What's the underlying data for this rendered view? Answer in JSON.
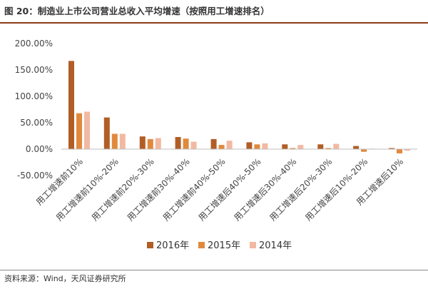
{
  "header": {
    "title": "图 20：制造业上市公司营业总收入平均增速（按照用工增速排名）"
  },
  "footer": {
    "source": "资料来源：Wind，天风证券研究所"
  },
  "chart_data": {
    "type": "bar",
    "title": "",
    "xlabel": "",
    "ylabel": "",
    "ylim": [
      -0.5,
      2.0
    ],
    "yticks": [
      -0.5,
      0.0,
      0.5,
      1.0,
      1.5,
      2.0
    ],
    "ytick_labels": [
      "-50.00%",
      "0.00%",
      "50.00%",
      "100.00%",
      "150.00%",
      "200.00%"
    ],
    "grid": false,
    "legend_position": "bottom",
    "categories": [
      "用工增速前10%",
      "用工增速前10%-20%",
      "用工增速前20%-30%",
      "用工增速前30%-40%",
      "用工增速前40%-50%",
      "用工增速后40%-50%",
      "用工增速后30%-40%",
      "用工增速后20%-30%",
      "用工增速后10%-20%",
      "用工增速后10%"
    ],
    "series": [
      {
        "name": "2016年",
        "color": "#b15e26",
        "values": [
          1.67,
          0.6,
          0.24,
          0.23,
          0.19,
          0.13,
          0.09,
          0.09,
          0.06,
          0.02
        ]
      },
      {
        "name": "2015年",
        "color": "#e0893e",
        "values": [
          0.68,
          0.29,
          0.19,
          0.2,
          0.08,
          0.09,
          0.02,
          0.02,
          -0.05,
          -0.08
        ]
      },
      {
        "name": "2014年",
        "color": "#f2b9a2",
        "values": [
          0.71,
          0.29,
          0.21,
          0.14,
          0.16,
          0.11,
          0.08,
          0.1,
          0.01,
          -0.03
        ]
      }
    ]
  }
}
